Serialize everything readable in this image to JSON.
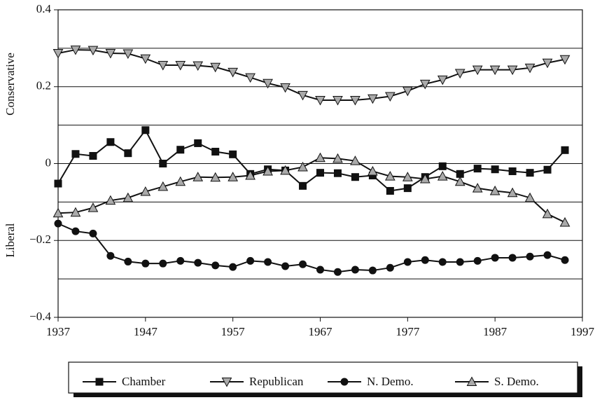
{
  "chart_data": {
    "type": "line",
    "y_label_upper": "Conservative",
    "y_label_lower": "Liberal",
    "x": [
      1937,
      1939,
      1941,
      1943,
      1945,
      1947,
      1949,
      1951,
      1953,
      1955,
      1957,
      1959,
      1961,
      1963,
      1965,
      1967,
      1969,
      1971,
      1973,
      1975,
      1977,
      1979,
      1981,
      1983,
      1985,
      1987,
      1989,
      1991,
      1993,
      1995
    ],
    "series": [
      {
        "name": "Chamber",
        "color": "#111111",
        "marker": "square",
        "values": [
          -0.052,
          0.025,
          0.02,
          0.056,
          0.027,
          0.087,
          0,
          0.036,
          0.053,
          0.031,
          0.024,
          -0.027,
          -0.015,
          -0.018,
          -0.058,
          -0.024,
          -0.025,
          -0.035,
          -0.031,
          -0.071,
          -0.064,
          -0.035,
          -0.007,
          -0.027,
          -0.013,
          -0.015,
          -0.02,
          -0.024,
          -0.016,
          0.035
        ]
      },
      {
        "name": "Republican",
        "color": "#111111",
        "marker": "triangle-down",
        "values": [
          0.287,
          0.296,
          0.295,
          0.287,
          0.286,
          0.273,
          0.256,
          0.256,
          0.255,
          0.251,
          0.238,
          0.224,
          0.209,
          0.198,
          0.178,
          0.165,
          0.165,
          0.165,
          0.169,
          0.175,
          0.189,
          0.207,
          0.218,
          0.235,
          0.244,
          0.244,
          0.244,
          0.249,
          0.262,
          0.271
        ]
      },
      {
        "name": "N. Demo.",
        "color": "#111111",
        "marker": "circle",
        "values": [
          -0.156,
          -0.176,
          -0.182,
          -0.24,
          -0.255,
          -0.26,
          -0.26,
          -0.253,
          -0.258,
          -0.265,
          -0.269,
          -0.253,
          -0.256,
          -0.267,
          -0.262,
          -0.276,
          -0.282,
          -0.276,
          -0.278,
          -0.271,
          -0.256,
          -0.251,
          -0.256,
          -0.256,
          -0.253,
          -0.245,
          -0.245,
          -0.242,
          -0.238,
          -0.251
        ]
      },
      {
        "name": "S. Demo.",
        "color": "#111111",
        "marker": "triangle-up",
        "values": [
          -0.129,
          -0.127,
          -0.115,
          -0.096,
          -0.089,
          -0.073,
          -0.06,
          -0.047,
          -0.035,
          -0.036,
          -0.035,
          -0.031,
          -0.02,
          -0.018,
          -0.009,
          0.015,
          0.013,
          0.007,
          -0.02,
          -0.033,
          -0.035,
          -0.04,
          -0.033,
          -0.047,
          -0.064,
          -0.071,
          -0.076,
          -0.089,
          -0.131,
          -0.153
        ]
      }
    ],
    "xlim": [
      1937,
      1997
    ],
    "xticks": [
      1937,
      1947,
      1957,
      1967,
      1977,
      1987,
      1997
    ],
    "ylim": [
      -0.4,
      0.4
    ],
    "yticks": [
      {
        "value": -0.4,
        "label": "−0.4"
      },
      {
        "value": -0.2,
        "label": "−0.2"
      },
      0,
      0.2,
      0.4
    ],
    "ygrid": [
      -0.3,
      -0.2,
      -0.1,
      0,
      0.1,
      0.2,
      0.3
    ],
    "legend": "bottom"
  }
}
